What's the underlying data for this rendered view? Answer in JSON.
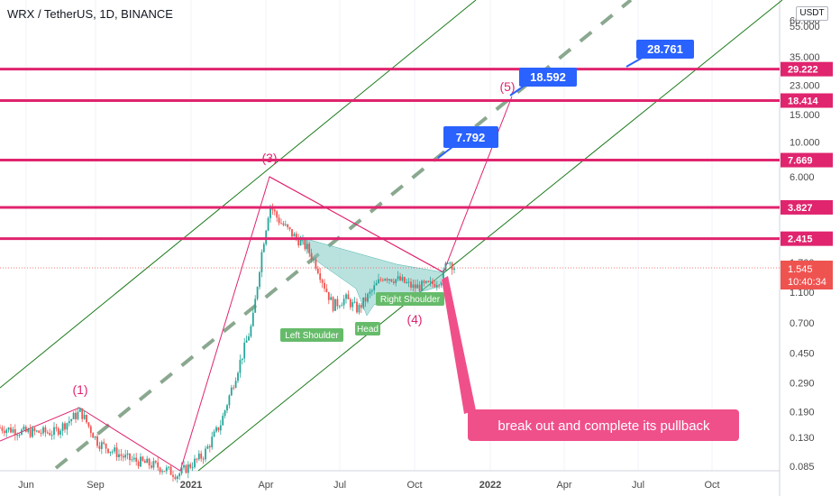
{
  "header": {
    "symbol_line": "WRX / TetherUS, 1D, BINANCE"
  },
  "currency_label": "USDT",
  "colors": {
    "level_line": "#e0246e",
    "price_label_bg": "#e0246e",
    "target_box_bg": "#2962ff",
    "channel_line": "#1b7a1b",
    "center_dash": "#8aa88f",
    "up_candle": "#26a69a",
    "down_candle": "#ef5350",
    "wave_text": "#e0246e",
    "shoulder_label_bg": "#66bb6a",
    "hs_fill": "#80cbc4",
    "callout_bg": "#f0508a",
    "current_price_bg": "#ef5350"
  },
  "chart_data": {
    "type": "candlestick",
    "title": "WRX / TetherUS, 1D, BINANCE",
    "y_scale": "log",
    "y_axis_unit": "USDT",
    "y_ticks": [
      "60.000",
      "55.000",
      "35.000",
      "23.000",
      "15.000",
      "10.000",
      "6.000",
      "1.700",
      "1.100",
      "0.700",
      "0.450",
      "0.290",
      "0.190",
      "0.130",
      "0.085"
    ],
    "x_ticks": [
      "Jun",
      "Sep",
      "2021",
      "Apr",
      "Jul",
      "Oct",
      "2022",
      "Apr",
      "Jul",
      "Oct"
    ],
    "x_range": [
      "2020-05-15",
      "2022-12-10"
    ],
    "horizontal_levels": [
      29.222,
      18.414,
      7.669,
      3.827,
      2.415
    ],
    "current_price": "1.545",
    "countdown": "10:40:34",
    "targets": [
      "28.761",
      "18.592",
      "7.792"
    ],
    "wave_labels": [
      "(1)",
      "(3)",
      "(4)",
      "(5)"
    ],
    "pattern_labels": [
      "Left Shoulder",
      "Head",
      "Right Shoulder"
    ],
    "annotation": "break out and complete its pullback",
    "price_path": [
      [
        "2020-05-15",
        0.15
      ],
      [
        "2020-06-15",
        0.14
      ],
      [
        "2020-07-20",
        0.14
      ],
      [
        "2020-08-20",
        0.19
      ],
      [
        "2020-09-10",
        0.12
      ],
      [
        "2020-10-15",
        0.095
      ],
      [
        "2020-11-20",
        0.085
      ],
      [
        "2020-12-15",
        0.075
      ],
      [
        "2021-01-15",
        0.1
      ],
      [
        "2021-02-05",
        0.16
      ],
      [
        "2021-02-25",
        0.35
      ],
      [
        "2021-03-15",
        0.7
      ],
      [
        "2021-03-25",
        1.8
      ],
      [
        "2021-04-05",
        4.0
      ],
      [
        "2021-04-15",
        3.2
      ],
      [
        "2021-05-01",
        2.6
      ],
      [
        "2021-05-20",
        2.1
      ],
      [
        "2021-06-01",
        1.6
      ],
      [
        "2021-06-10",
        1.2
      ],
      [
        "2021-06-20",
        0.9
      ],
      [
        "2021-07-05",
        1.0
      ],
      [
        "2021-07-20",
        0.85
      ],
      [
        "2021-08-05",
        1.1
      ],
      [
        "2021-08-20",
        1.4
      ],
      [
        "2021-09-10",
        1.3
      ],
      [
        "2021-09-25",
        1.18
      ],
      [
        "2021-10-15",
        1.22
      ],
      [
        "2021-10-30",
        1.35
      ],
      [
        "2021-11-05",
        1.8
      ],
      [
        "2021-11-15",
        1.55
      ]
    ]
  }
}
